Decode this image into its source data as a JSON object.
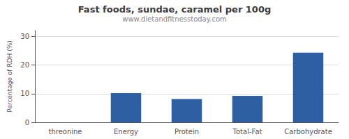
{
  "chart_data": {
    "type": "bar",
    "title": "Fast foods, sundae, caramel per 100g",
    "subtitle": "www.dietandfitnesstoday.com",
    "categories": [
      "threonine",
      "Energy",
      "Protein",
      "Total-Fat",
      "Carbohydrate"
    ],
    "values": [
      0,
      10.2,
      8.1,
      9.2,
      24.3
    ],
    "color": "#2e5fa3",
    "ylabel": "Percentage of RDH (%)",
    "ylim": [
      0,
      32
    ],
    "yticks": [
      0,
      10,
      20,
      30
    ],
    "grid": true
  }
}
